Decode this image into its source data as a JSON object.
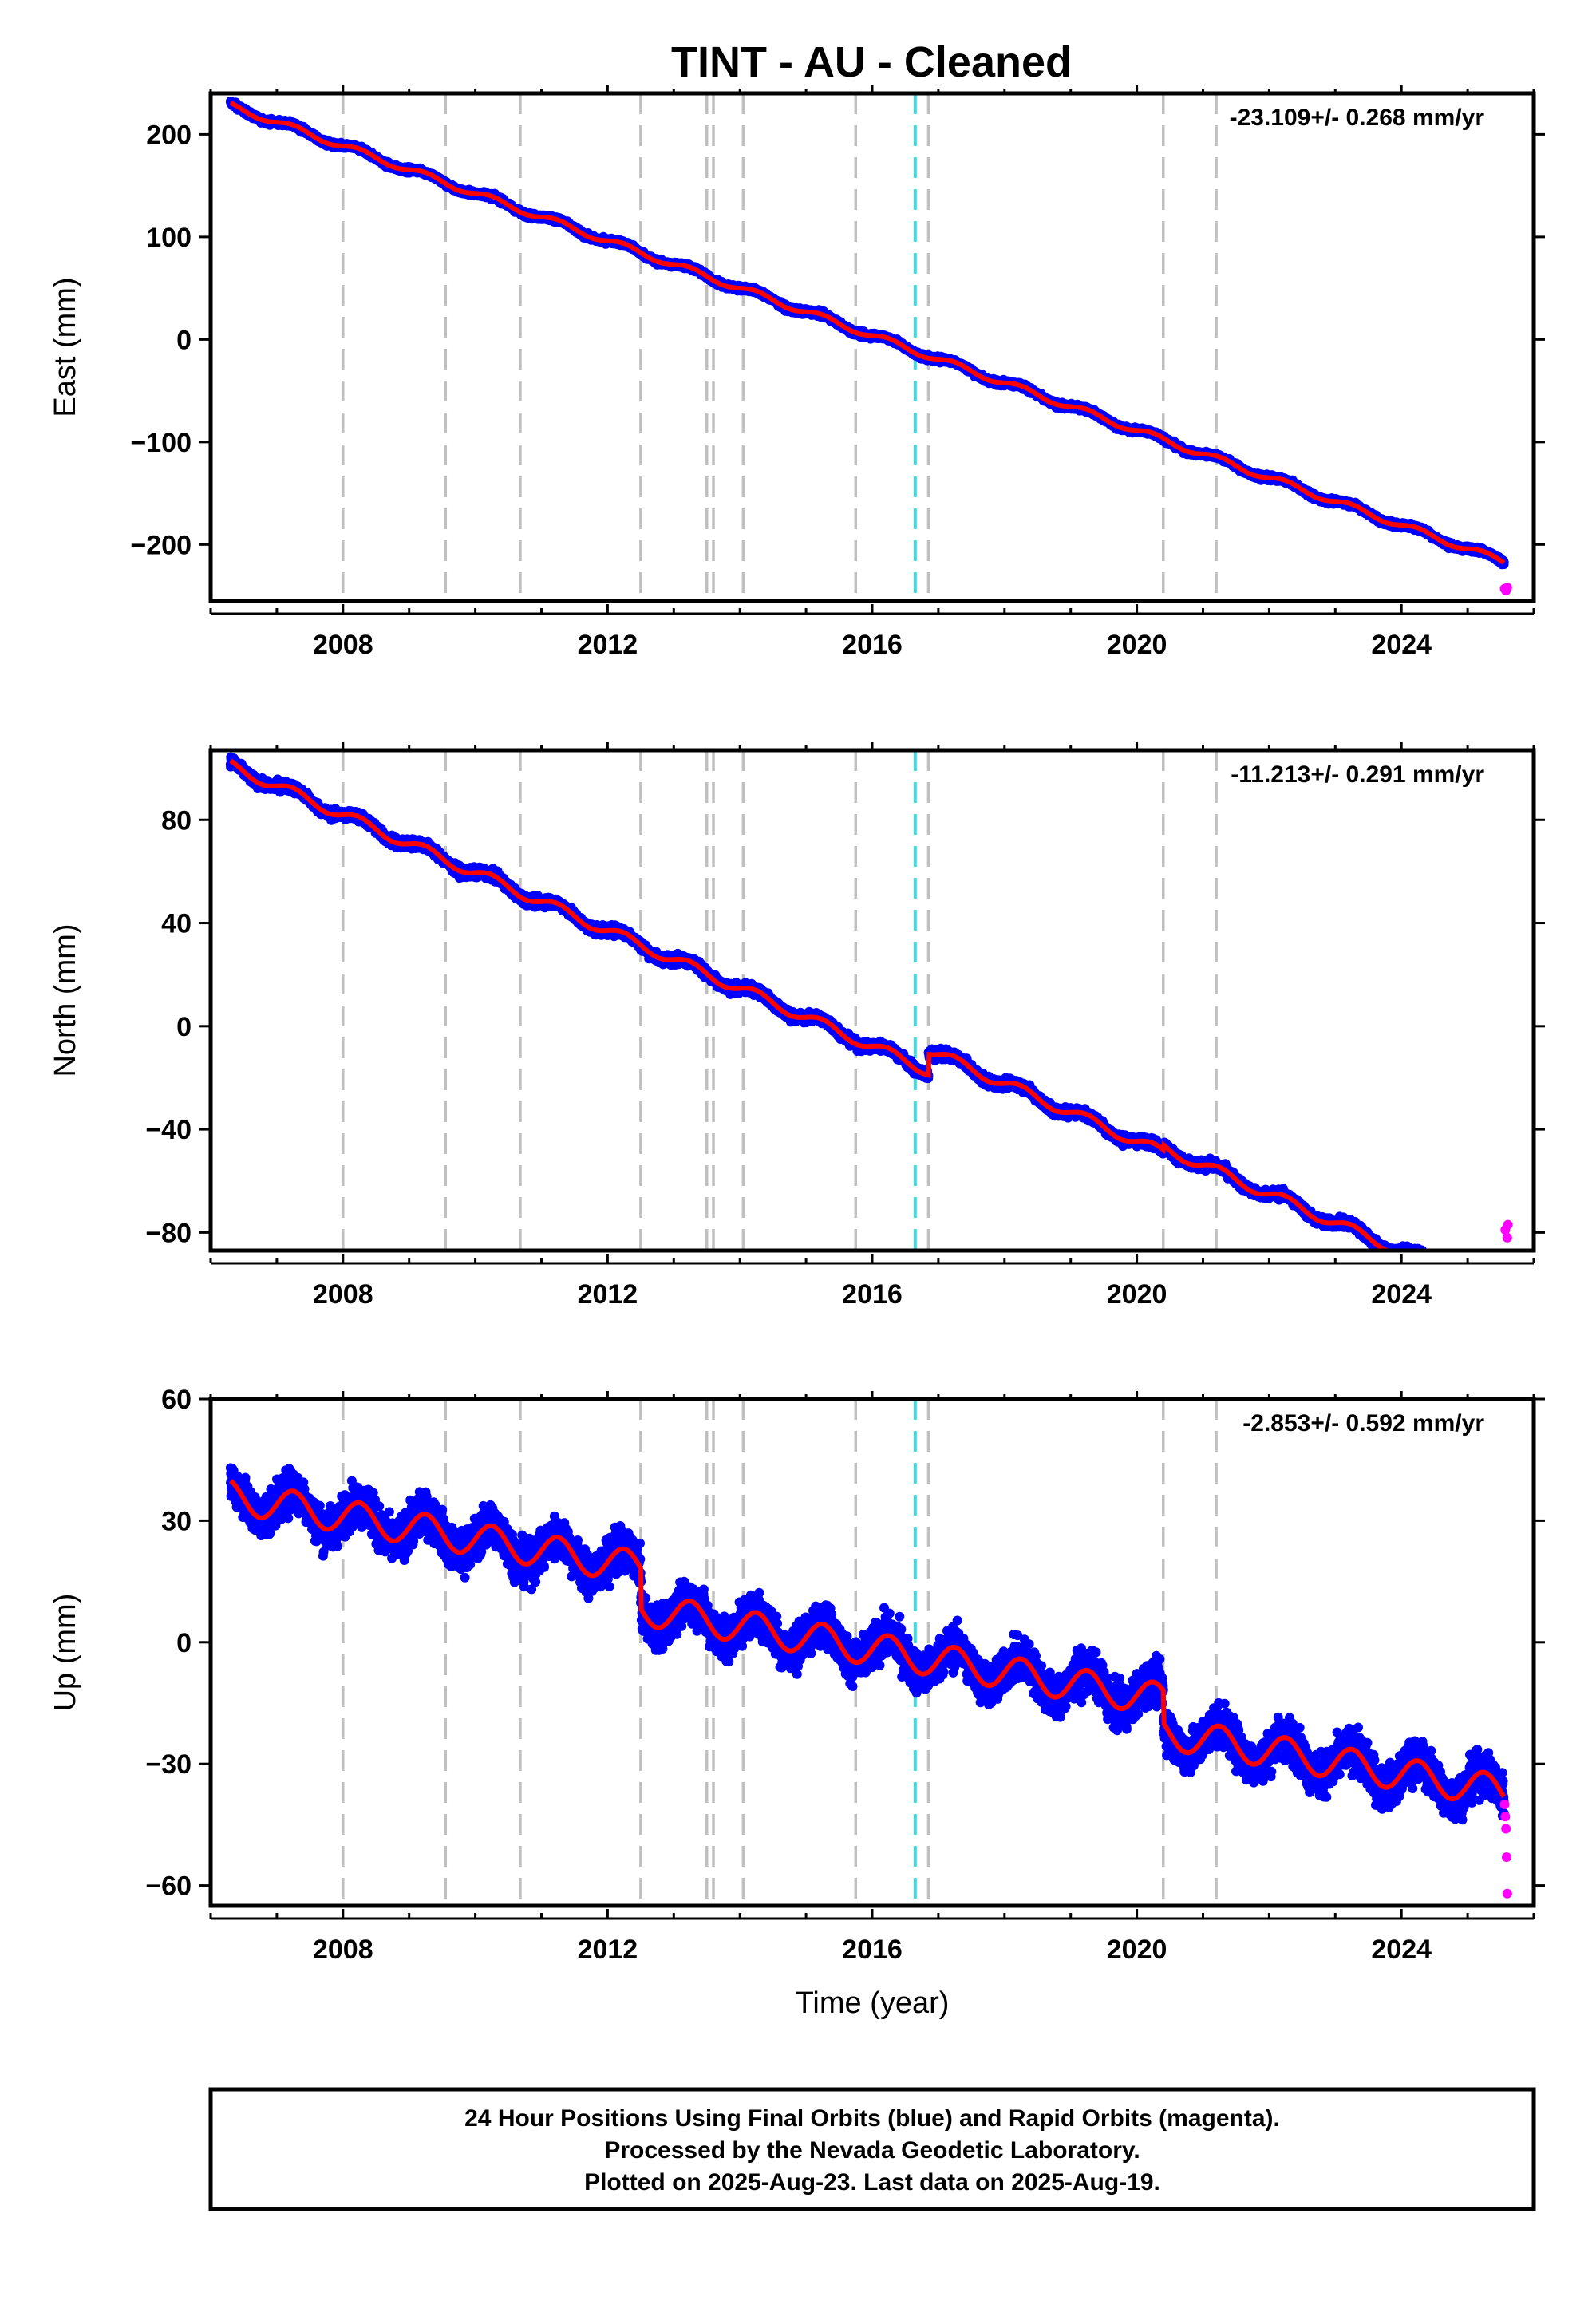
{
  "title": "TINT  - AU - Cleaned",
  "footer": {
    "lines": [
      "24 Hour Positions Using Final Orbits (blue) and Rapid Orbits (magenta).",
      "Processed by the Nevada Geodetic Laboratory.",
      "Plotted on 2025-Aug-23. Last data on 2025-Aug-19."
    ]
  },
  "colors": {
    "final_orbits": "#0000ff",
    "rapid_orbits": "#ff00ff",
    "model": "#ff0000",
    "equipment_change": "#c0c0c0",
    "earthquake": "#40e0e0",
    "frame": "#000000"
  },
  "chart_data": [
    {
      "type": "scatter",
      "panel": "east",
      "ylabel": "East (mm)",
      "xlabel": "",
      "xlim": [
        2006.0,
        2026.0
      ],
      "ylim": [
        -255,
        240
      ],
      "xticks": [
        2008,
        2012,
        2016,
        2020,
        2024
      ],
      "yticks": [
        -200,
        -100,
        0,
        100,
        200
      ],
      "rate_label": "-23.109+/- 0.268 mm/yr",
      "model": {
        "start": [
          2006.3,
          228.0
        ],
        "rate_mm_per_yr": -23.109,
        "seasonal_amplitude_mm": 3.0,
        "scatter_mm": 2.5,
        "offsets": []
      },
      "final_range": [
        2006.3,
        2025.55
      ],
      "rapid_points": [
        [
          2025.56,
          -243.0
        ],
        [
          2025.58,
          -245.0
        ],
        [
          2025.6,
          -242.0
        ]
      ]
    },
    {
      "type": "scatter",
      "panel": "north",
      "ylabel": "North (mm)",
      "xlabel": "",
      "xlim": [
        2006.0,
        2026.0
      ],
      "ylim": [
        -87,
        107
      ],
      "xticks": [
        2008,
        2012,
        2016,
        2020,
        2024
      ],
      "yticks": [
        -80,
        -40,
        0,
        40,
        80
      ],
      "rate_label": "-11.213+/- 0.291 mm/yr",
      "model": {
        "start": [
          2006.3,
          101.0
        ],
        "rate_mm_per_yr": -11.213,
        "seasonal_amplitude_mm": 2.0,
        "scatter_mm": 1.8,
        "offsets": [
          [
            2016.85,
            8.0
          ],
          [
            2020.4,
            2.0
          ]
        ]
      },
      "final_range": [
        2006.3,
        2025.55
      ],
      "rapid_points": [
        [
          2025.57,
          -79.0
        ],
        [
          2025.6,
          -82.0
        ],
        [
          2025.61,
          -77.0
        ]
      ]
    },
    {
      "type": "scatter",
      "panel": "up",
      "ylabel": "Up (mm)",
      "xlabel": "Time (year)",
      "xlim": [
        2006.0,
        2026.0
      ],
      "ylim": [
        -65,
        60
      ],
      "xticks": [
        2008,
        2012,
        2016,
        2020,
        2024
      ],
      "yticks": [
        -60,
        -30,
        0,
        30,
        60
      ],
      "rate_label": "-2.853+/- 0.592 mm/yr",
      "model": {
        "start": [
          2006.3,
          36.0
        ],
        "rate_mm_per_yr": -2.853,
        "seasonal_amplitude_mm": 4.0,
        "scatter_mm": 5.0,
        "offsets": [
          [
            2012.5,
            -10.0
          ],
          [
            2020.4,
            -8.0
          ]
        ]
      },
      "final_range": [
        2006.3,
        2025.55
      ],
      "rapid_points": [
        [
          2025.56,
          -40.0
        ],
        [
          2025.57,
          -43.0
        ],
        [
          2025.58,
          -46.0
        ],
        [
          2025.59,
          -53.0
        ],
        [
          2025.6,
          -62.0
        ]
      ]
    }
  ],
  "equipment_changes": [
    2008.0,
    2009.55,
    2010.68,
    2012.5,
    2013.5,
    2013.6,
    2014.05,
    2015.75,
    2016.85,
    2020.4,
    2021.2
  ],
  "earthquakes": [
    2016.65
  ]
}
